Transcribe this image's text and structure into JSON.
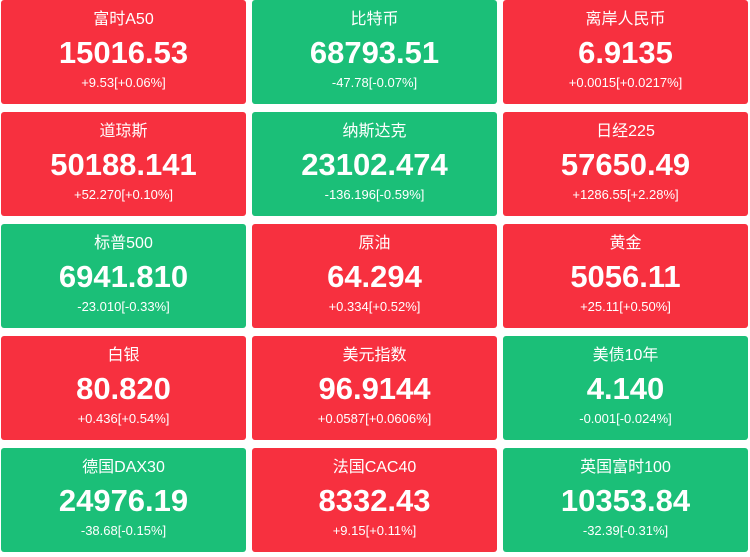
{
  "tiles": [
    {
      "name": "富时A50",
      "price": "15016.53",
      "change": "+9.53[+0.06%]",
      "color": "#f7303f"
    },
    {
      "name": "比特币",
      "price": "68793.51",
      "change": "-47.78[-0.07%]",
      "color": "#1bbf78"
    },
    {
      "name": "离岸人民币",
      "price": "6.9135",
      "change": "+0.0015[+0.0217%]",
      "color": "#f7303f"
    },
    {
      "name": "道琼斯",
      "price": "50188.141",
      "change": "+52.270[+0.10%]",
      "color": "#f7303f"
    },
    {
      "name": "纳斯达克",
      "price": "23102.474",
      "change": "-136.196[-0.59%]",
      "color": "#1bbf78"
    },
    {
      "name": "日经225",
      "price": "57650.49",
      "change": "+1286.55[+2.28%]",
      "color": "#f7303f"
    },
    {
      "name": "标普500",
      "price": "6941.810",
      "change": "-23.010[-0.33%]",
      "color": "#1bbf78"
    },
    {
      "name": "原油",
      "price": "64.294",
      "change": "+0.334[+0.52%]",
      "color": "#f7303f"
    },
    {
      "name": "黄金",
      "price": "5056.11",
      "change": "+25.11[+0.50%]",
      "color": "#f7303f"
    },
    {
      "name": "白银",
      "price": "80.820",
      "change": "+0.436[+0.54%]",
      "color": "#f7303f"
    },
    {
      "name": "美元指数",
      "price": "96.9144",
      "change": "+0.0587[+0.0606%]",
      "color": "#f7303f"
    },
    {
      "name": "美债10年",
      "price": "4.140",
      "change": "-0.001[-0.024%]",
      "color": "#1bbf78"
    },
    {
      "name": "德国DAX30",
      "price": "24976.19",
      "change": "-38.68[-0.15%]",
      "color": "#1bbf78"
    },
    {
      "name": "法国CAC40",
      "price": "8332.43",
      "change": "+9.15[+0.11%]",
      "color": "#f7303f"
    },
    {
      "name": "英国富时100",
      "price": "10353.84",
      "change": "-32.39[-0.31%]",
      "color": "#1bbf78"
    }
  ]
}
